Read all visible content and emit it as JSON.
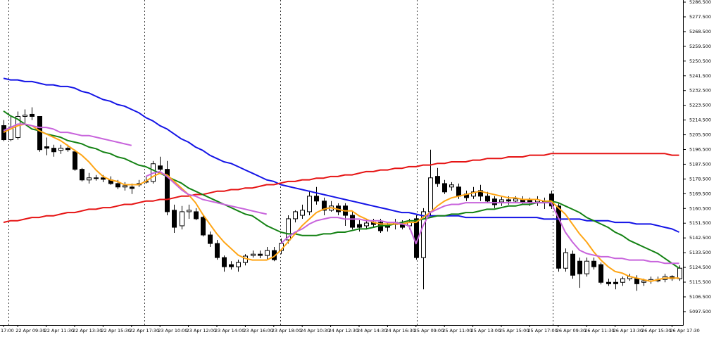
{
  "chart_data": {
    "type": "candlestick",
    "categories": [
      "17:00",
      null,
      "22 Apr 09:30",
      null,
      null,
      null,
      "22 Apr 11:30",
      null,
      null,
      null,
      "22 Apr 13:30",
      null,
      null,
      null,
      "22 Apr 15:30",
      null,
      null,
      null,
      "22 Apr 17:30",
      null,
      null,
      null,
      "23 Apr 10:00",
      null,
      null,
      null,
      "23 Apr 12:00",
      null,
      null,
      null,
      "23 Apr 14:00",
      null,
      null,
      null,
      "23 Apr 16:00",
      null,
      null,
      null,
      "23 Apr 18:00",
      null,
      null,
      null,
      "24 Apr 10:30",
      null,
      null,
      null,
      "24 Apr 12:30",
      null,
      null,
      null,
      "24 Apr 14:30",
      null,
      null,
      null,
      "24 Apr 16:30",
      null,
      null,
      null,
      "25 Apr 09:00",
      null,
      null,
      null,
      "25 Apr 11:00",
      null,
      null,
      null,
      "25 Apr 13:00",
      null,
      null,
      null,
      "25 Apr 15:00",
      null,
      null,
      null,
      "25 Apr 17:00",
      null,
      null,
      null,
      "26 Apr 09:30",
      null,
      null,
      null,
      "26 Apr 11:30",
      null,
      null,
      null,
      "26 Apr 13:30",
      null,
      null,
      null,
      "26 Apr 15:30",
      null,
      null,
      null,
      "26 Apr 17:30",
      null
    ],
    "candles": {
      "up_color": "#ffffff",
      "down_color": "#000000",
      "outline_color": "#000000",
      "open": [
        5211.1,
        5202.5,
        5203.8,
        5216.7,
        5218.0,
        5216.7,
        5198.2,
        5197.3,
        5196.0,
        5197.3,
        5195.1,
        5184.4,
        5177.9,
        5179.2,
        5179.2,
        5177.9,
        5175.7,
        5173.6,
        5173.6,
        5174.9,
        5176.6,
        5177.0,
        5186.5,
        5184.4,
        5159.4,
        5149.9,
        5158.5,
        5158.5,
        5155.1,
        5144.3,
        5139.1,
        5130.5,
        5126.2,
        5124.9,
        5127.5,
        5131.8,
        5132.6,
        5131.8,
        5134.8,
        5134.8,
        5141.3,
        5154.2,
        5156.3,
        5158.5,
        5168.0,
        5165.0,
        5159.4,
        5162.0,
        5162.0,
        5156.3,
        5150.7,
        5149.9,
        5152.0,
        5152.0,
        5149.9,
        5150.7,
        5150.7,
        5149.9,
        5154.2,
        5130.5,
        5158.5,
        5180.1,
        5175.7,
        5173.6,
        5173.6,
        5169.3,
        5168.0,
        5171.4,
        5168.0,
        5166.3,
        5164.5,
        5165.8,
        5165.0,
        5165.8,
        5165.4,
        5164.5,
        5165.0,
        5169.3,
        5162.0,
        5124.0,
        5132.6,
        5128.3,
        5120.6,
        5128.3,
        5126.2,
        5115.4,
        5115.4,
        5115.4,
        5117.6,
        5117.6,
        5115.4,
        5116.3,
        5117.1,
        5117.1,
        5118.9,
        5117.6
      ],
      "high": [
        5214.5,
        5216.7,
        5219.7,
        5221.0,
        5222.3,
        5216.7,
        5203.8,
        5199.4,
        5199.4,
        5199.4,
        5196.4,
        5185.2,
        5182.2,
        5180.9,
        5180.9,
        5180.1,
        5177.9,
        5176.6,
        5175.7,
        5177.9,
        5180.1,
        5189.5,
        5192.1,
        5189.5,
        5162.8,
        5162.0,
        5162.8,
        5160.7,
        5156.3,
        5146.4,
        5141.3,
        5131.8,
        5128.3,
        5129.2,
        5132.6,
        5134.8,
        5134.8,
        5137.0,
        5137.0,
        5142.1,
        5156.3,
        5159.4,
        5162.8,
        5171.4,
        5173.6,
        5167.1,
        5165.0,
        5163.7,
        5163.7,
        5158.5,
        5153.3,
        5154.2,
        5154.2,
        5154.2,
        5152.0,
        5154.2,
        5153.3,
        5154.2,
        5156.3,
        5160.7,
        5196.4,
        5185.2,
        5177.9,
        5176.6,
        5175.7,
        5171.4,
        5173.6,
        5174.9,
        5170.6,
        5168.0,
        5168.0,
        5168.0,
        5168.0,
        5168.0,
        5167.1,
        5168.0,
        5167.1,
        5171.4,
        5163.7,
        5136.1,
        5134.8,
        5130.5,
        5130.5,
        5130.5,
        5127.5,
        5117.6,
        5117.6,
        5118.9,
        5120.6,
        5119.7,
        5117.6,
        5118.9,
        5118.9,
        5120.6,
        5119.7,
        5125.7
      ],
      "low": [
        5201.6,
        5201.6,
        5202.5,
        5212.4,
        5214.5,
        5195.1,
        5193.0,
        5192.1,
        5193.8,
        5195.1,
        5183.5,
        5177.0,
        5175.7,
        5177.5,
        5176.6,
        5174.9,
        5172.3,
        5171.4,
        5169.3,
        5173.6,
        5175.7,
        5175.7,
        5182.2,
        5156.3,
        5145.6,
        5147.7,
        5154.2,
        5153.3,
        5143.4,
        5137.0,
        5129.2,
        5121.9,
        5123.2,
        5121.9,
        5125.7,
        5130.5,
        5130.1,
        5129.2,
        5128.3,
        5132.6,
        5139.1,
        5152.0,
        5154.2,
        5156.3,
        5162.8,
        5156.3,
        5158.5,
        5156.3,
        5149.9,
        5147.7,
        5146.4,
        5147.7,
        5149.0,
        5145.6,
        5146.4,
        5147.7,
        5147.7,
        5147.7,
        5129.2,
        5111.1,
        5156.3,
        5173.6,
        5169.3,
        5171.4,
        5166.3,
        5165.0,
        5166.3,
        5165.0,
        5163.7,
        5160.7,
        5162.0,
        5162.8,
        5163.7,
        5162.8,
        5162.0,
        5162.0,
        5160.2,
        5160.2,
        5121.9,
        5121.9,
        5117.6,
        5112.0,
        5118.9,
        5123.2,
        5114.1,
        5113.2,
        5111.1,
        5113.2,
        5116.3,
        5110.2,
        5113.2,
        5114.5,
        5115.4,
        5115.4,
        5116.3,
        5116.3
      ],
      "close": [
        5202.5,
        5210.2,
        5216.7,
        5217.5,
        5216.7,
        5196.4,
        5197.3,
        5195.1,
        5197.3,
        5196.4,
        5184.4,
        5177.9,
        5179.2,
        5178.8,
        5178.3,
        5175.7,
        5173.6,
        5174.4,
        5172.7,
        5175.7,
        5177.0,
        5187.8,
        5184.4,
        5158.5,
        5149.0,
        5158.5,
        5159.4,
        5154.2,
        5144.3,
        5139.1,
        5130.5,
        5124.9,
        5124.9,
        5127.5,
        5131.4,
        5132.6,
        5131.8,
        5134.8,
        5129.2,
        5139.1,
        5154.2,
        5158.5,
        5159.4,
        5168.0,
        5165.0,
        5159.4,
        5162.0,
        5158.5,
        5156.3,
        5149.0,
        5149.0,
        5151.6,
        5150.7,
        5146.9,
        5149.0,
        5152.0,
        5149.0,
        5152.0,
        5130.5,
        5158.5,
        5179.2,
        5175.7,
        5170.6,
        5174.9,
        5168.0,
        5167.1,
        5170.6,
        5168.0,
        5165.0,
        5162.8,
        5165.8,
        5165.0,
        5166.3,
        5164.5,
        5164.1,
        5165.8,
        5164.1,
        5162.0,
        5124.0,
        5133.5,
        5119.7,
        5120.6,
        5128.3,
        5124.9,
        5115.4,
        5114.5,
        5114.5,
        5117.6,
        5118.9,
        5114.5,
        5116.3,
        5117.1,
        5116.3,
        5118.9,
        5117.6,
        5124.0
      ]
    },
    "lines": [
      {
        "color": "#1414e6",
        "values": [
          5240,
          5239,
          5239,
          5238,
          5238,
          5237,
          5236,
          5236,
          5235,
          5235,
          5234,
          5232,
          5231,
          5229,
          5227,
          5226,
          5224,
          5223,
          5221,
          5219,
          5216,
          5214,
          5211,
          5209,
          5206,
          5203,
          5201,
          5198,
          5196,
          5193,
          5191,
          5189,
          5188,
          5186,
          5184,
          5182,
          5180,
          5178,
          5177,
          5175,
          5174,
          5173,
          5172,
          5171,
          5170,
          5169,
          5168,
          5167,
          5166,
          5165,
          5164,
          5163,
          5162,
          5161,
          5160,
          5159,
          5158,
          5158,
          5157,
          5156,
          5156,
          5156,
          5156,
          5156,
          5156,
          5155,
          5155,
          5155,
          5155,
          5155,
          5155,
          5155,
          5155,
          5155,
          5155,
          5155,
          5154,
          5154,
          5154,
          5154,
          5154,
          5154,
          5153,
          5153,
          5153,
          5153,
          5152,
          5152,
          5152,
          5151,
          5151,
          5151,
          5150,
          5149,
          5148,
          5146
        ]
      },
      {
        "color": "#e61414",
        "values": [
          5152,
          5153,
          5153,
          5154,
          5155,
          5155,
          5156,
          5156,
          5157,
          5158,
          5158,
          5159,
          5160,
          5160,
          5161,
          5161,
          5162,
          5163,
          5163,
          5164,
          5165,
          5165,
          5166,
          5166,
          5167,
          5168,
          5168,
          5169,
          5169,
          5170,
          5171,
          5171,
          5172,
          5172,
          5173,
          5173,
          5174,
          5175,
          5175,
          5176,
          5177,
          5177,
          5178,
          5178,
          5179,
          5179,
          5180,
          5180,
          5181,
          5181,
          5182,
          5183,
          5183,
          5184,
          5184,
          5185,
          5185,
          5186,
          5186,
          5187,
          5187,
          5188,
          5188,
          5189,
          5189,
          5189,
          5190,
          5190,
          5191,
          5191,
          5191,
          5192,
          5192,
          5192,
          5193,
          5193,
          5193,
          5194,
          5194,
          5194,
          5194,
          5194,
          5194,
          5194,
          5194,
          5194,
          5194,
          5194,
          5194,
          5194,
          5194,
          5194,
          5194,
          5194,
          5193,
          5193
        ]
      },
      {
        "color": "#148214",
        "values": [
          5220,
          5217,
          5215,
          5212,
          5209,
          5208,
          5206,
          5205,
          5204,
          5202,
          5201,
          5200,
          5198,
          5197,
          5195,
          5194,
          5192,
          5191,
          5189,
          5187,
          5186,
          5184,
          5182,
          5180,
          5178,
          5176,
          5173,
          5171,
          5169,
          5167,
          5165,
          5163,
          5161,
          5159,
          5157,
          5156,
          5153,
          5150,
          5148,
          5146,
          5145,
          5145,
          5144,
          5144,
          5144,
          5145,
          5145,
          5146,
          5146,
          5147,
          5148,
          5148,
          5149,
          5150,
          5150,
          5151,
          5152,
          5153,
          5153,
          5154,
          5155,
          5156,
          5156,
          5157,
          5157,
          5158,
          5158,
          5159,
          5160,
          5160,
          5161,
          5162,
          5162,
          5163,
          5163,
          5164,
          5164,
          5165,
          5164,
          5162,
          5160,
          5158,
          5155,
          5153,
          5151,
          5149,
          5146,
          5144,
          5141,
          5139,
          5137,
          5135,
          5133,
          5130,
          5127,
          5124
        ]
      },
      {
        "color": "#ffa514",
        "values": [
          5207,
          5209,
          5211,
          5212,
          5211,
          5208,
          5206,
          5204,
          5202,
          5199,
          5196,
          5193,
          5189,
          5184,
          5180,
          5178,
          5177,
          5175,
          5175,
          5175,
          5177,
          5180,
          5182,
          5181,
          5177,
          5173,
          5169,
          5164,
          5157,
          5151,
          5145,
          5140,
          5136,
          5132,
          5130,
          5129,
          5129,
          5129,
          5131,
          5135,
          5140,
          5145,
          5150,
          5154,
          5158,
          5160,
          5161,
          5160,
          5159,
          5159,
          5156,
          5154,
          5152,
          5151,
          5151,
          5151,
          5151,
          5152,
          5152,
          5155,
          5158,
          5162,
          5165,
          5167,
          5168,
          5169,
          5170,
          5171,
          5170,
          5169,
          5168,
          5167,
          5167,
          5166,
          5166,
          5166,
          5165,
          5165,
          5161,
          5157,
          5151,
          5145,
          5140,
          5134,
          5129,
          5125,
          5122,
          5121,
          5119,
          5118,
          5117,
          5116,
          5117,
          5118,
          5118,
          5118
        ]
      },
      {
        "color": "#c864dc",
        "values": [
          5208,
          5210,
          5212,
          5212,
          5211,
          5210,
          5210,
          5209,
          5207,
          5207,
          5206,
          5205,
          5205,
          5204,
          5203,
          5202,
          5201,
          5200,
          5199,
          null,
          5180,
          5182,
          5183,
          5180,
          5176,
          5172,
          5169,
          5168,
          5166,
          5165,
          5164,
          5163,
          5162,
          5161,
          5160,
          5159,
          5158,
          5157,
          null,
          5139,
          5143,
          5146,
          5148,
          5151,
          5153,
          5154,
          5155,
          5155,
          5154,
          5154,
          5154,
          5153,
          5153,
          5153,
          5152,
          5152,
          5151,
          5150,
          5139,
          5150,
          5158,
          5160,
          5162,
          5163,
          5163,
          5164,
          5164,
          5164,
          5164,
          5164,
          5164,
          5164,
          5164,
          5164,
          5164,
          5164,
          5164,
          5164,
          5155,
          5146,
          5140,
          5135,
          5133,
          5132,
          5131,
          5131,
          5130,
          5130,
          5129,
          5129,
          5129,
          5128,
          5128,
          5127,
          5127,
          5127
        ]
      }
    ],
    "ylim": [
      5089.3,
      5287.8
    ],
    "yticks": [
      {
        "value": 5286.5,
        "label": "5286.500"
      },
      {
        "value": 5277.5,
        "label": "5277.500"
      },
      {
        "value": 5268.5,
        "label": "5268.500"
      },
      {
        "value": 5259.5,
        "label": "5259.500"
      },
      {
        "value": 5250.5,
        "label": "5250.500"
      },
      {
        "value": 5241.5,
        "label": "5241.500"
      },
      {
        "value": 5232.5,
        "label": "5232.500"
      },
      {
        "value": 5223.5,
        "label": "5223.500"
      },
      {
        "value": 5214.5,
        "label": "5214.500"
      },
      {
        "value": 5205.5,
        "label": "5205.500"
      },
      {
        "value": 5196.5,
        "label": "5196.500"
      },
      {
        "value": 5187.5,
        "label": "5187.500"
      },
      {
        "value": 5178.5,
        "label": "5178.500"
      },
      {
        "value": 5169.5,
        "label": "5169.500"
      },
      {
        "value": 5160.5,
        "label": "5160.500"
      },
      {
        "value": 5151.5,
        "label": "5151.500"
      },
      {
        "value": 5142.5,
        "label": "5142.500"
      },
      {
        "value": 5133.5,
        "label": "5133.500"
      },
      {
        "value": 5124.5,
        "label": "5124.500"
      },
      {
        "value": 5115.5,
        "label": "5115.500"
      },
      {
        "value": 5106.5,
        "label": "5106.500"
      },
      {
        "value": 5097.5,
        "label": "5097.500"
      }
    ],
    "grid": false
  }
}
